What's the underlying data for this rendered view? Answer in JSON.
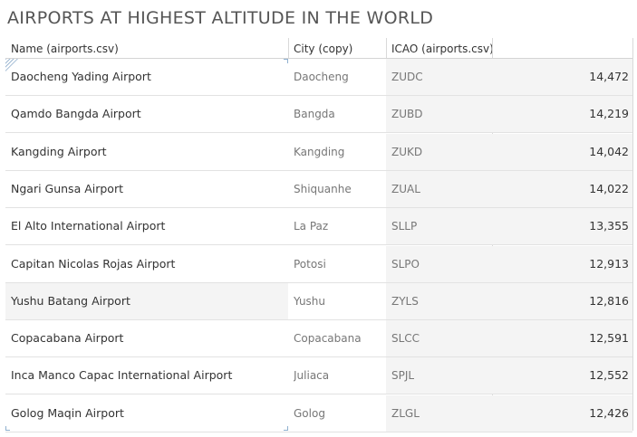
{
  "title": "AIRPORTS AT HIGHEST ALTITUDE IN THE WORLD",
  "columns": {
    "name": "Name (airports.csv)",
    "city": "City (copy)",
    "icao": "ICAO (airports.csv)"
  },
  "rows": [
    {
      "name": "Daocheng Yading Airport",
      "city": "Daocheng",
      "icao": "ZUDC",
      "value": "14,472"
    },
    {
      "name": "Qamdo Bangda Airport",
      "city": "Bangda",
      "icao": "ZUBD",
      "value": "14,219"
    },
    {
      "name": "Kangding Airport",
      "city": "Kangding",
      "icao": "ZUKD",
      "value": "14,042"
    },
    {
      "name": "Ngari Gunsa Airport",
      "city": "Shiquanhe",
      "icao": "ZUAL",
      "value": "14,022"
    },
    {
      "name": "El Alto International Airport",
      "city": "La Paz",
      "icao": "SLLP",
      "value": "13,355"
    },
    {
      "name": "Capitan Nicolas Rojas Airport",
      "city": "Potosi",
      "icao": "SLPO",
      "value": "12,913"
    },
    {
      "name": "Yushu Batang Airport",
      "city": "Yushu",
      "icao": "ZYLS",
      "value": "12,816"
    },
    {
      "name": "Copacabana Airport",
      "city": "Copacabana",
      "icao": "SLCC",
      "value": "12,591"
    },
    {
      "name": "Inca Manco Capac International Airport",
      "city": "Juliaca",
      "icao": "SPJL",
      "value": "12,552"
    },
    {
      "name": "Golog Maqin Airport",
      "city": "Golog",
      "icao": "ZLGL",
      "value": "12,426"
    }
  ],
  "highlighted_row": 6
}
